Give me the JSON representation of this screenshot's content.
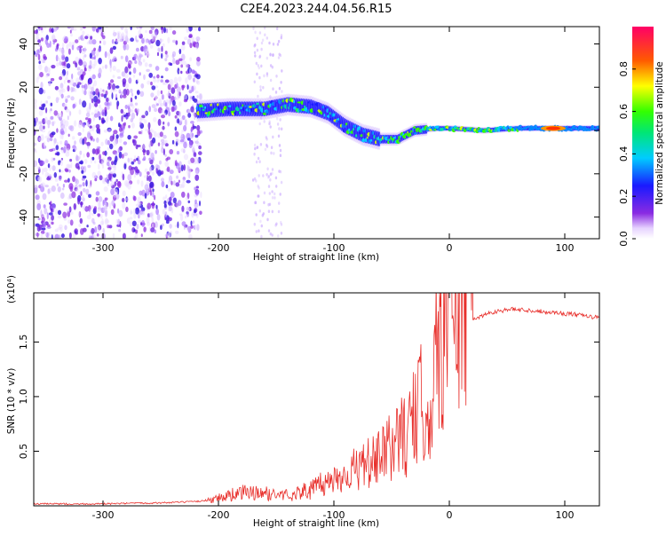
{
  "title": "C2E4.2023.244.04.56.R15",
  "colors": {
    "snr_line": "#e8302c",
    "frame": "#000000"
  },
  "chart_data": [
    {
      "type": "heatmap",
      "title": "C2E4.2023.244.04.56.R15",
      "xlabel": "Height of straight line (km)",
      "ylabel": "Frequency (Hz)",
      "xlim": [
        -360,
        130
      ],
      "ylim": [
        -50,
        48
      ],
      "x_ticks": [
        -300,
        -200,
        -100,
        0,
        100
      ],
      "y_ticks": [
        -40,
        -20,
        0,
        20,
        40
      ],
      "colorbar": {
        "label": "Normalized spectral amplitude",
        "range": [
          0.0,
          1.0
        ],
        "ticks": [
          "0.0",
          "0.2",
          "0.4",
          "0.6",
          "0.8"
        ],
        "colormap": "rainbow (violet to red)"
      },
      "features": {
        "noise_region_x": [
          -360,
          -215
        ],
        "signal_centerline": [
          [
            -218,
            9
          ],
          [
            -190,
            10
          ],
          [
            -160,
            10
          ],
          [
            -140,
            12
          ],
          [
            -120,
            11
          ],
          [
            -105,
            8
          ],
          [
            -90,
            2
          ],
          [
            -75,
            -2
          ],
          [
            -60,
            -4
          ],
          [
            -45,
            -4
          ],
          [
            -30,
            0
          ],
          [
            -10,
            1
          ],
          [
            0,
            1
          ],
          [
            30,
            0
          ],
          [
            60,
            1
          ],
          [
            90,
            1
          ],
          [
            130,
            1
          ]
        ],
        "strong_peak": [
          90,
          1
        ]
      }
    },
    {
      "type": "line",
      "xlabel": "Height of straight line (km)",
      "ylabel": "SNR (10 * v/v)",
      "y_multiplier": "(x10⁴)",
      "xlim": [
        -360,
        130
      ],
      "ylim": [
        0,
        1.95
      ],
      "x_ticks": [
        -300,
        -200,
        -100,
        0,
        100
      ],
      "y_ticks": [
        0.5,
        1.0,
        1.5
      ],
      "y_tick_labels": [
        "0.5",
        "1.0",
        "1.5"
      ],
      "series": [
        {
          "x": [
            -360,
            -300,
            -250,
            -220,
            -200,
            -180,
            -160,
            -140,
            -120,
            -100,
            -80,
            -60,
            -45,
            -35,
            -25,
            -15,
            -10,
            -5,
            0,
            5,
            10,
            20,
            30,
            40,
            55,
            70,
            90,
            110,
            130
          ],
          "y": [
            0.01,
            0.01,
            0.02,
            0.03,
            0.06,
            0.1,
            0.09,
            0.08,
            0.12,
            0.2,
            0.28,
            0.35,
            0.5,
            0.55,
            0.75,
            0.8,
            1.2,
            1.35,
            1.45,
            1.5,
            1.6,
            1.7,
            1.75,
            1.78,
            1.8,
            1.79,
            1.77,
            1.75,
            1.72
          ]
        }
      ]
    }
  ]
}
